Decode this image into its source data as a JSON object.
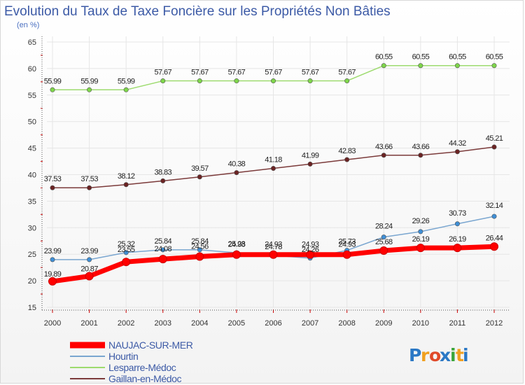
{
  "chart_data": {
    "type": "line",
    "title": "Evolution du Taux de Taxe Foncière sur les Propriétés Non Bâties",
    "ylabel": "(en %)",
    "xlabel": "",
    "ylim": [
      15,
      65
    ],
    "yticks": [
      "15",
      "20",
      "25",
      "30",
      "35",
      "40",
      "45",
      "50",
      "55",
      "60",
      "65"
    ],
    "x": [
      "2000",
      "2001",
      "2002",
      "2003",
      "2004",
      "2005",
      "2006",
      "2007",
      "2008",
      "2009",
      "2010",
      "2011",
      "2012"
    ],
    "series": [
      {
        "name": "NAUJAC-SUR-MER",
        "color": "#ff0000",
        "values": [
          19.89,
          20.87,
          23.55,
          24.08,
          24.56,
          24.93,
          24.93,
          24.93,
          24.93,
          25.68,
          26.19,
          26.19,
          26.44
        ],
        "labels": [
          "19.89",
          "20.87",
          "23.55",
          "24.08",
          "24.56",
          "24.93",
          "24.93",
          "24.93",
          "24.93",
          "25.68",
          "26.19",
          "26.19",
          "26.44"
        ]
      },
      {
        "name": "Hourtin",
        "color": "#7aa6d0",
        "values": [
          23.99,
          23.99,
          25.32,
          25.84,
          25.84,
          25.28,
          24.78,
          24.26,
          25.73,
          28.24,
          29.26,
          30.73,
          32.14
        ],
        "labels": [
          "23.99",
          "23.99",
          "25.32",
          "25.84",
          "25.84",
          "25.28",
          "24.78",
          "24.26",
          "25.73",
          "28.24",
          "29.26",
          "30.73",
          "32.14"
        ]
      },
      {
        "name": "Lesparre-Médoc",
        "color": "#9ddb6e",
        "values": [
          55.99,
          55.99,
          55.99,
          57.67,
          57.67,
          57.67,
          57.67,
          57.67,
          57.67,
          60.55,
          60.55,
          60.55,
          60.55
        ],
        "labels": [
          "55.99",
          "55.99",
          "55.99",
          "57.67",
          "57.67",
          "57.67",
          "57.67",
          "57.67",
          "57.67",
          "60.55",
          "60.55",
          "60.55",
          "60.55"
        ]
      },
      {
        "name": "Gaillan-en-Médoc",
        "color": "#7b3a3a",
        "values": [
          37.53,
          37.53,
          38.12,
          38.83,
          39.57,
          40.38,
          41.18,
          41.99,
          42.83,
          43.66,
          43.66,
          44.32,
          45.21
        ],
        "labels": [
          "37.53",
          "37.53",
          "38.12",
          "38.83",
          "39.57",
          "40.38",
          "41.18",
          "41.99",
          "42.83",
          "43.66",
          "43.66",
          "44.32",
          "45.21"
        ]
      }
    ],
    "legend": [
      "NAUJAC-SUR-MER",
      "Hourtin",
      "Lesparre-Médoc",
      "Gaillan-en-Médoc"
    ]
  },
  "logo": {
    "text": "Proxiti",
    "letters": [
      "P",
      "r",
      "o",
      "x",
      "i",
      "t",
      "i"
    ],
    "colors": [
      "#2b78c5",
      "#f0a020",
      "#e04a2a",
      "#2b78c5",
      "#3aa53a",
      "#f0a020",
      "#2b78c5"
    ]
  }
}
